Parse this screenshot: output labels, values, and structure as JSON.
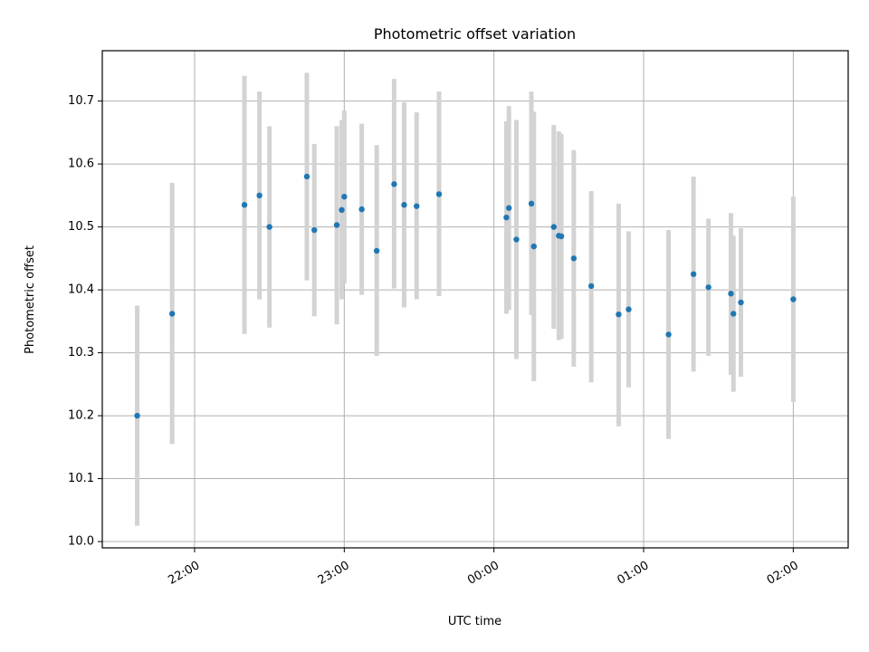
{
  "chart_data": {
    "type": "scatter",
    "title": "Photometric offset variation",
    "xlabel": "UTC time",
    "ylabel": "Photometric offset",
    "x_axis": {
      "kind": "time",
      "range": [
        "21:23",
        "02:22"
      ],
      "ticks": [
        "22:00",
        "23:00",
        "00:00",
        "01:00",
        "02:00"
      ]
    },
    "y_axis": {
      "range": [
        9.99,
        10.78
      ],
      "ticks": [
        "10.0",
        "10.1",
        "10.2",
        "10.3",
        "10.4",
        "10.5",
        "10.6",
        "10.7"
      ]
    },
    "grid": true,
    "point_color": "#1f77b4",
    "errorbar_color": "#d3d3d3",
    "series": [
      {
        "points": [
          {
            "x": "21:37",
            "y": 10.2,
            "low": 10.025,
            "high": 10.375
          },
          {
            "x": "21:51",
            "y": 10.362,
            "low": 10.155,
            "high": 10.57
          },
          {
            "x": "22:20",
            "y": 10.535,
            "low": 10.33,
            "high": 10.74
          },
          {
            "x": "22:26",
            "y": 10.55,
            "low": 10.385,
            "high": 10.715
          },
          {
            "x": "22:30",
            "y": 10.5,
            "low": 10.34,
            "high": 10.66
          },
          {
            "x": "22:45",
            "y": 10.58,
            "low": 10.415,
            "high": 10.745
          },
          {
            "x": "22:48",
            "y": 10.495,
            "low": 10.358,
            "high": 10.632
          },
          {
            "x": "22:57",
            "y": 10.503,
            "low": 10.345,
            "high": 10.66
          },
          {
            "x": "22:59",
            "y": 10.527,
            "low": 10.385,
            "high": 10.67
          },
          {
            "x": "23:00",
            "y": 10.548,
            "low": 10.41,
            "high": 10.685
          },
          {
            "x": "23:07",
            "y": 10.528,
            "low": 10.392,
            "high": 10.664
          },
          {
            "x": "23:13",
            "y": 10.462,
            "low": 10.295,
            "high": 10.63
          },
          {
            "x": "23:20",
            "y": 10.568,
            "low": 10.402,
            "high": 10.735
          },
          {
            "x": "23:24",
            "y": 10.535,
            "low": 10.372,
            "high": 10.698
          },
          {
            "x": "23:29",
            "y": 10.533,
            "low": 10.385,
            "high": 10.682
          },
          {
            "x": "23:38",
            "y": 10.552,
            "low": 10.39,
            "high": 10.715
          },
          {
            "x": "00:05",
            "y": 10.515,
            "low": 10.362,
            "high": 10.668
          },
          {
            "x": "00:06",
            "y": 10.53,
            "low": 10.368,
            "high": 10.692
          },
          {
            "x": "00:09",
            "y": 10.48,
            "low": 10.29,
            "high": 10.67
          },
          {
            "x": "00:15",
            "y": 10.537,
            "low": 10.36,
            "high": 10.715
          },
          {
            "x": "00:16",
            "y": 10.469,
            "low": 10.255,
            "high": 10.683
          },
          {
            "x": "00:24",
            "y": 10.5,
            "low": 10.338,
            "high": 10.662
          },
          {
            "x": "00:26",
            "y": 10.486,
            "low": 10.32,
            "high": 10.652
          },
          {
            "x": "00:27",
            "y": 10.485,
            "low": 10.322,
            "high": 10.648
          },
          {
            "x": "00:32",
            "y": 10.45,
            "low": 10.278,
            "high": 10.622
          },
          {
            "x": "00:39",
            "y": 10.406,
            "low": 10.253,
            "high": 10.557
          },
          {
            "x": "00:50",
            "y": 10.361,
            "low": 10.183,
            "high": 10.537
          },
          {
            "x": "00:54",
            "y": 10.369,
            "low": 10.245,
            "high": 10.493
          },
          {
            "x": "01:10",
            "y": 10.329,
            "low": 10.163,
            "high": 10.495
          },
          {
            "x": "01:20",
            "y": 10.425,
            "low": 10.27,
            "high": 10.58
          },
          {
            "x": "01:26",
            "y": 10.404,
            "low": 10.295,
            "high": 10.513
          },
          {
            "x": "01:35",
            "y": 10.394,
            "low": 10.265,
            "high": 10.522
          },
          {
            "x": "01:36",
            "y": 10.362,
            "low": 10.238,
            "high": 10.486
          },
          {
            "x": "01:39",
            "y": 10.38,
            "low": 10.262,
            "high": 10.498
          },
          {
            "x": "02:00",
            "y": 10.385,
            "low": 10.222,
            "high": 10.548
          }
        ]
      }
    ]
  }
}
